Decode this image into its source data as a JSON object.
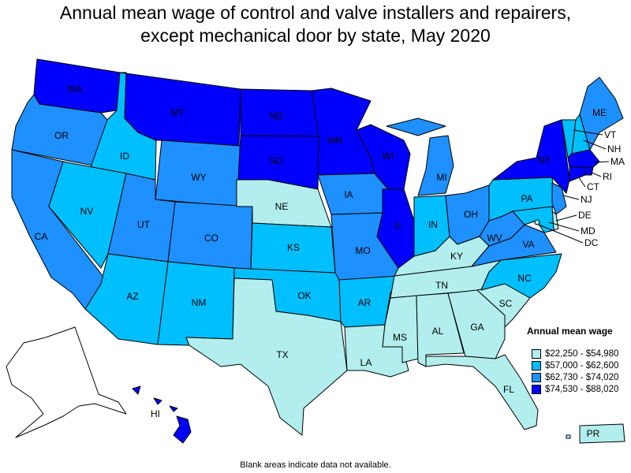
{
  "title_lines": [
    "Annual mean wage of control and valve installers and repairers,",
    "except mechanical door by state, May 2020"
  ],
  "legend": {
    "title": "Annual mean wage",
    "items": [
      {
        "label": "$22,250 - $54,980",
        "color": "#b2eeee"
      },
      {
        "label": "$57,000 - $62,600",
        "color": "#00bfff"
      },
      {
        "label": "$62,730 - $74,020",
        "color": "#1e90ff"
      },
      {
        "label": "$74,530 - $88,020",
        "color": "#0000ff"
      }
    ]
  },
  "footnote": "Blank areas indicate data not available.",
  "states": [
    {
      "code": "WA",
      "tier": 3
    },
    {
      "code": "OR",
      "tier": 2
    },
    {
      "code": "CA",
      "tier": 2
    },
    {
      "code": "ID",
      "tier": 1
    },
    {
      "code": "NV",
      "tier": 1
    },
    {
      "code": "MT",
      "tier": 3
    },
    {
      "code": "WY",
      "tier": 2
    },
    {
      "code": "UT",
      "tier": 2
    },
    {
      "code": "AZ",
      "tier": 1
    },
    {
      "code": "CO",
      "tier": 2
    },
    {
      "code": "NM",
      "tier": 1
    },
    {
      "code": "ND",
      "tier": 3
    },
    {
      "code": "SD",
      "tier": 3
    },
    {
      "code": "NE",
      "tier": 0
    },
    {
      "code": "KS",
      "tier": 1
    },
    {
      "code": "OK",
      "tier": 1
    },
    {
      "code": "TX",
      "tier": 0
    },
    {
      "code": "MN",
      "tier": 3
    },
    {
      "code": "IA",
      "tier": 2
    },
    {
      "code": "MO",
      "tier": 2
    },
    {
      "code": "AR",
      "tier": 1
    },
    {
      "code": "LA",
      "tier": 0
    },
    {
      "code": "WI",
      "tier": 3
    },
    {
      "code": "IL",
      "tier": 3
    },
    {
      "code": "MI",
      "tier": 2
    },
    {
      "code": "IN",
      "tier": 1
    },
    {
      "code": "OH",
      "tier": 2
    },
    {
      "code": "KY",
      "tier": 0
    },
    {
      "code": "TN",
      "tier": 0
    },
    {
      "code": "MS",
      "tier": 0
    },
    {
      "code": "AL",
      "tier": 0
    },
    {
      "code": "GA",
      "tier": 0
    },
    {
      "code": "FL",
      "tier": 0
    },
    {
      "code": "SC",
      "tier": 0
    },
    {
      "code": "NC",
      "tier": 1
    },
    {
      "code": "VA",
      "tier": 2
    },
    {
      "code": "WV",
      "tier": 2
    },
    {
      "code": "PA",
      "tier": 1
    },
    {
      "code": "NY",
      "tier": 3
    },
    {
      "code": "VT",
      "tier": 1
    },
    {
      "code": "NH",
      "tier": 1
    },
    {
      "code": "ME",
      "tier": 2
    },
    {
      "code": "MA",
      "tier": 3
    },
    {
      "code": "RI",
      "tier": 3
    },
    {
      "code": "CT",
      "tier": 3
    },
    {
      "code": "NJ",
      "tier": 2
    },
    {
      "code": "DE",
      "tier": 0
    },
    {
      "code": "MD",
      "tier": 1
    },
    {
      "code": "DC",
      "tier": 0
    },
    {
      "code": "AK",
      "tier": null
    },
    {
      "code": "HI",
      "tier": 3
    },
    {
      "code": "PR",
      "tier": 0
    }
  ]
}
